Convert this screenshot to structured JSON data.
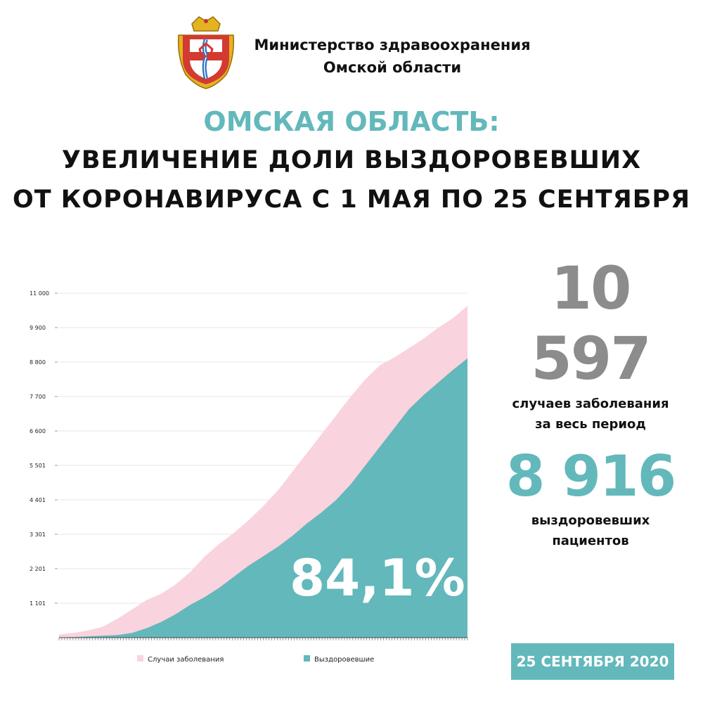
{
  "header": {
    "ministry_line1": "Министерство здравоохранения",
    "ministry_line2": "Омской области",
    "coat_of_arms_icon": "omsk-coat-of-arms-icon"
  },
  "headline": {
    "line1": "ОМСКАЯ ОБЛАСТЬ:",
    "line2": "УВЕЛИЧЕНИЕ ДОЛИ ВЫЗДОРОВЕВШИХ",
    "line3": "ОТ КОРОНАВИРУСА С 1 МАЯ ПО 25 СЕНТЯБРЯ"
  },
  "stats": {
    "cases_value": "10 597",
    "cases_label_line1": "случаев заболевания",
    "cases_label_line2": "за весь период",
    "recovered_value": "8 916",
    "recovered_label_line1": "выздоровевших",
    "recovered_label_line2": "пациентов"
  },
  "date_badge": "25 СЕНТЯБРЯ 2020",
  "colors": {
    "accent": "#63b8bb",
    "cases": "#f9d3de",
    "recovered": "#63b8bb",
    "big_number_gray": "#8c8c8c"
  },
  "chart_data": {
    "type": "area",
    "x_range": [
      "1 мая",
      "25 сентября"
    ],
    "yticks": [
      {
        "value": 0,
        "label": ""
      },
      {
        "value": 1101,
        "label": "1 101"
      },
      {
        "value": 2201,
        "label": "2 201"
      },
      {
        "value": 3301,
        "label": "3 301"
      },
      {
        "value": 4401,
        "label": "4 401"
      },
      {
        "value": 5501,
        "label": "5 501"
      },
      {
        "value": 6600,
        "label": "6 600"
      },
      {
        "value": 7700,
        "label": "7 700"
      },
      {
        "value": 8800,
        "label": "8 800"
      },
      {
        "value": 9900,
        "label": "9 900"
      },
      {
        "value": 11000,
        "label": "11 000"
      }
    ],
    "ylim": [
      0,
      11000
    ],
    "grid": true,
    "legend_position": "bottom",
    "annotation": "84,1%",
    "series": [
      {
        "name": "Случаи заболевания",
        "color": "#f9d3de",
        "values": [
          100,
          150,
          230,
          350,
          600,
          900,
          1200,
          1400,
          1700,
          2100,
          2600,
          3000,
          3350,
          3750,
          4200,
          4700,
          5300,
          5900,
          6500,
          7100,
          7700,
          8250,
          8700,
          8950,
          9250,
          9550,
          9900,
          10200,
          10597
        ]
      },
      {
        "name": "Выздоровевшие",
        "color": "#63b8bb",
        "values": [
          0,
          20,
          40,
          60,
          80,
          150,
          300,
          500,
          750,
          1050,
          1300,
          1600,
          1950,
          2300,
          2600,
          2900,
          3250,
          3650,
          4000,
          4400,
          4900,
          5500,
          6100,
          6700,
          7300,
          7750,
          8150,
          8550,
          8916
        ]
      }
    ]
  }
}
